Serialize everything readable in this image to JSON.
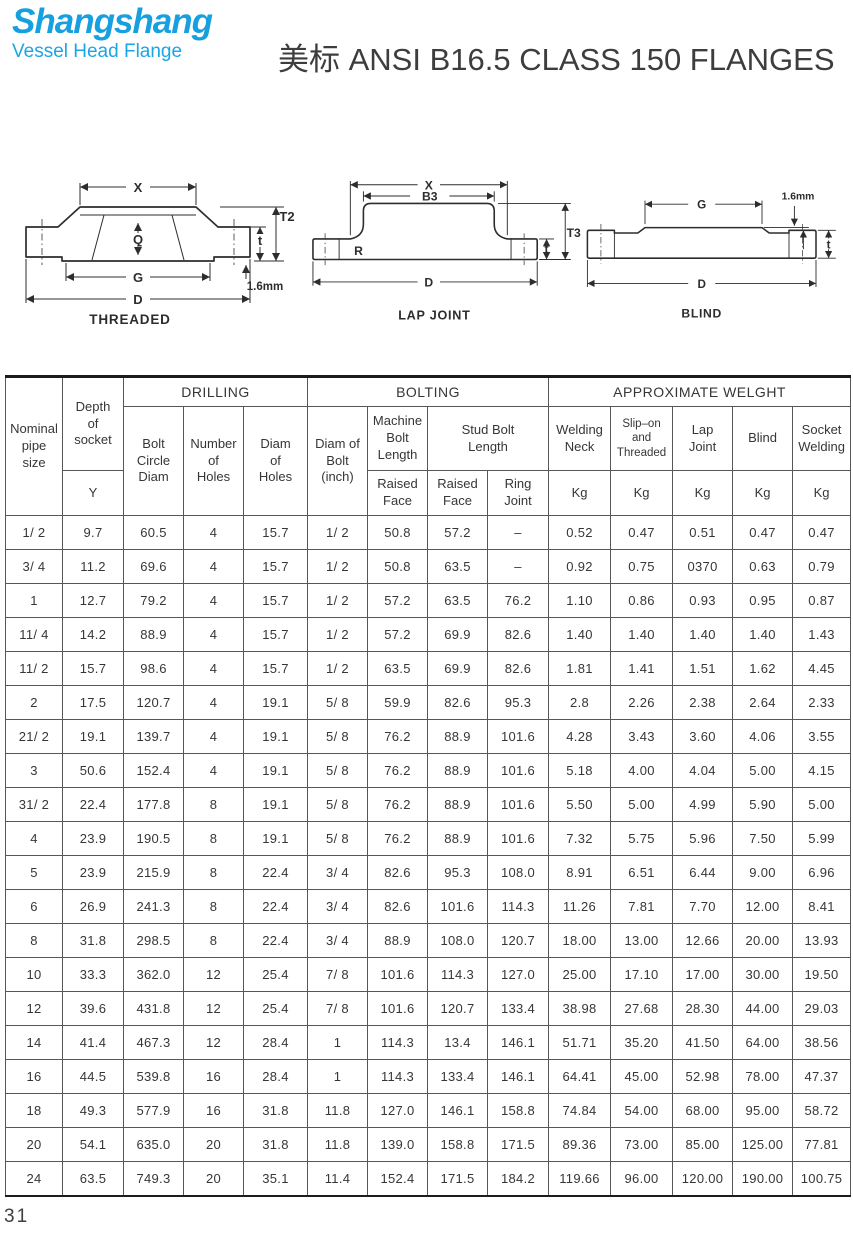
{
  "logo": {
    "name": "Shangshang",
    "subtitle": "Vessel Head Flange"
  },
  "title": "美标 ANSI B16.5 CLASS 150 FLANGES",
  "page_number": "31",
  "colors": {
    "logo_blue": "#17a0e0",
    "text_dark": "#363636",
    "line": "#2d2d2d"
  },
  "drawings": {
    "threaded": {
      "caption": "THREADED",
      "dim_x": "X",
      "dim_q": "Q",
      "dim_g": "G",
      "dim_d": "D",
      "dim_t": "t",
      "dim_t2": "T2",
      "note": "1.6mm"
    },
    "lap_joint": {
      "caption": "LAP JOINT",
      "dim_x": "X",
      "dim_b3": "B3",
      "dim_r": "R",
      "dim_d": "D",
      "dim_t": "t",
      "dim_t3": "T3"
    },
    "blind": {
      "caption": "BLIND",
      "dim_g": "G",
      "dim_d": "D",
      "dim_t": "t",
      "note": "1.6mm"
    }
  },
  "table": {
    "header": {
      "nominal": "Nominal\npipe\nsize",
      "depth": "Depth\nof\nsocket",
      "y": "Y",
      "drilling": "DRILLING",
      "bolting": "BOLTING",
      "weight": "APPROXIMATE WELGHT",
      "bolt_circle": "Bolt\nCircle\nDiam",
      "num_holes": "Number\nof\nHoles",
      "diam_holes": "Diam\nof\nHoles",
      "diam_bolt": "Diam of\nBolt\n(inch)",
      "machine": "Machine\nBolt\nLength",
      "machine_rf": "Raised\nFace",
      "stud": "Stud Bolt\nLength",
      "stud_rf": "Raised\nFace",
      "stud_rj": "Ring\nJoint",
      "welding_neck": "Welding\nNeck",
      "slip_on": "Slip–on\nand\nThreaded",
      "lap_joint": "Lap\nJoint",
      "blind": "Blind",
      "socket_welding": "Socket\nWelding",
      "kg": "Kg"
    },
    "rows": [
      [
        "1/ 2",
        "9.7",
        "60.5",
        "4",
        "15.7",
        "1/ 2",
        "50.8",
        "57.2",
        "–",
        "0.52",
        "0.47",
        "0.51",
        "0.47",
        "0.47"
      ],
      [
        "3/ 4",
        "11.2",
        "69.6",
        "4",
        "15.7",
        "1/ 2",
        "50.8",
        "63.5",
        "–",
        "0.92",
        "0.75",
        "0370",
        "0.63",
        "0.79"
      ],
      [
        "1",
        "12.7",
        "79.2",
        "4",
        "15.7",
        "1/ 2",
        "57.2",
        "63.5",
        "76.2",
        "1.10",
        "0.86",
        "0.93",
        "0.95",
        "0.87"
      ],
      [
        "11/ 4",
        "14.2",
        "88.9",
        "4",
        "15.7",
        "1/ 2",
        "57.2",
        "69.9",
        "82.6",
        "1.40",
        "1.40",
        "1.40",
        "1.40",
        "1.43"
      ],
      [
        "11/ 2",
        "15.7",
        "98.6",
        "4",
        "15.7",
        "1/ 2",
        "63.5",
        "69.9",
        "82.6",
        "1.81",
        "1.41",
        "1.51",
        "1.62",
        "4.45"
      ],
      [
        "2",
        "17.5",
        "120.7",
        "4",
        "19.1",
        "5/ 8",
        "59.9",
        "82.6",
        "95.3",
        "2.8",
        "2.26",
        "2.38",
        "2.64",
        "2.33"
      ],
      [
        "21/ 2",
        "19.1",
        "139.7",
        "4",
        "19.1",
        "5/ 8",
        "76.2",
        "88.9",
        "101.6",
        "4.28",
        "3.43",
        "3.60",
        "4.06",
        "3.55"
      ],
      [
        "3",
        "50.6",
        "152.4",
        "4",
        "19.1",
        "5/ 8",
        "76.2",
        "88.9",
        "101.6",
        "5.18",
        "4.00",
        "4.04",
        "5.00",
        "4.15"
      ],
      [
        "31/ 2",
        "22.4",
        "177.8",
        "8",
        "19.1",
        "5/ 8",
        "76.2",
        "88.9",
        "101.6",
        "5.50",
        "5.00",
        "4.99",
        "5.90",
        "5.00"
      ],
      [
        "4",
        "23.9",
        "190.5",
        "8",
        "19.1",
        "5/ 8",
        "76.2",
        "88.9",
        "101.6",
        "7.32",
        "5.75",
        "5.96",
        "7.50",
        "5.99"
      ],
      [
        "5",
        "23.9",
        "215.9",
        "8",
        "22.4",
        "3/ 4",
        "82.6",
        "95.3",
        "108.0",
        "8.91",
        "6.51",
        "6.44",
        "9.00",
        "6.96"
      ],
      [
        "6",
        "26.9",
        "241.3",
        "8",
        "22.4",
        "3/ 4",
        "82.6",
        "101.6",
        "114.3",
        "11.26",
        "7.81",
        "7.70",
        "12.00",
        "8.41"
      ],
      [
        "8",
        "31.8",
        "298.5",
        "8",
        "22.4",
        "3/ 4",
        "88.9",
        "108.0",
        "120.7",
        "18.00",
        "13.00",
        "12.66",
        "20.00",
        "13.93"
      ],
      [
        "10",
        "33.3",
        "362.0",
        "12",
        "25.4",
        "7/ 8",
        "101.6",
        "114.3",
        "127.0",
        "25.00",
        "17.10",
        "17.00",
        "30.00",
        "19.50"
      ],
      [
        "12",
        "39.6",
        "431.8",
        "12",
        "25.4",
        "7/ 8",
        "101.6",
        "120.7",
        "133.4",
        "38.98",
        "27.68",
        "28.30",
        "44.00",
        "29.03"
      ],
      [
        "14",
        "41.4",
        "467.3",
        "12",
        "28.4",
        "1",
        "114.3",
        "13.4",
        "146.1",
        "51.71",
        "35.20",
        "41.50",
        "64.00",
        "38.56"
      ],
      [
        "16",
        "44.5",
        "539.8",
        "16",
        "28.4",
        "1",
        "114.3",
        "133.4",
        "146.1",
        "64.41",
        "45.00",
        "52.98",
        "78.00",
        "47.37"
      ],
      [
        "18",
        "49.3",
        "577.9",
        "16",
        "31.8",
        "11.8",
        "127.0",
        "146.1",
        "158.8",
        "74.84",
        "54.00",
        "68.00",
        "95.00",
        "58.72"
      ],
      [
        "20",
        "54.1",
        "635.0",
        "20",
        "31.8",
        "11.8",
        "139.0",
        "158.8",
        "171.5",
        "89.36",
        "73.00",
        "85.00",
        "125.00",
        "77.81"
      ],
      [
        "24",
        "63.5",
        "749.3",
        "20",
        "35.1",
        "11.4",
        "152.4",
        "171.5",
        "184.2",
        "119.66",
        "96.00",
        "120.00",
        "190.00",
        "100.75"
      ]
    ]
  }
}
